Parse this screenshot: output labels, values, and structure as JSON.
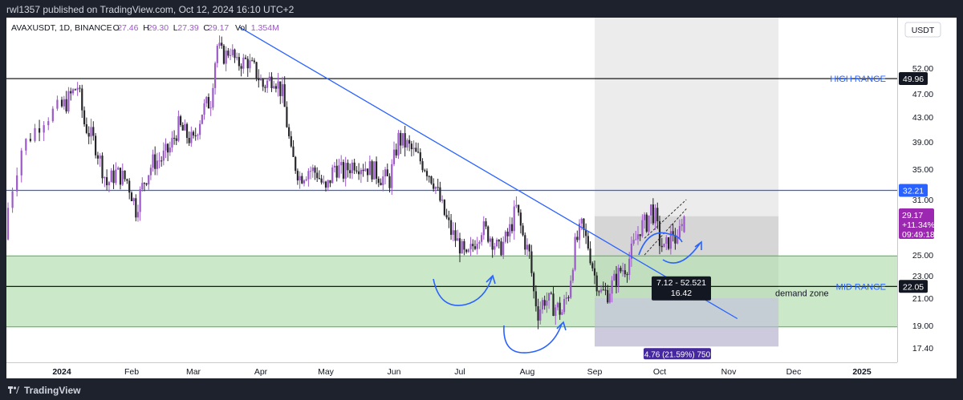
{
  "header": {
    "published_text": "rwl1357 published on TradingView.com, Oct 12, 2024 16:10 UTC+2"
  },
  "legend": {
    "symbol": "AVAXUSDT, 1D, BINANCE",
    "o_label": "O",
    "o_value": "27.46",
    "h_label": "H",
    "h_value": "29.30",
    "l_label": "L",
    "l_value": "27.39",
    "c_label": "C",
    "c_value": "29.17",
    "vol_label": "Vol",
    "vol_value": "1.354M"
  },
  "colors": {
    "bull": "#9c59c8",
    "bear": "#26262b",
    "trendline": "#2962ff",
    "demand_fill": "#b9e0b5",
    "current_price_badge": "#9c27b0",
    "level_badge": "#131722",
    "blue_badge": "#2962ff",
    "range_badge": "#4527a0"
  },
  "footer": {
    "brand": "TradingView"
  },
  "chart_data": {
    "type": "candlestick",
    "currency": "USDT",
    "y_ticks": [
      52.0,
      47.0,
      43.0,
      39.0,
      35.0,
      31.0,
      25.0,
      23.0,
      21.0,
      19.0,
      17.4
    ],
    "y_tick_labels": [
      "52.00",
      "47.00",
      "43.00",
      "39.00",
      "35.00",
      "31.00",
      "25.00",
      "23.00",
      "21.00",
      "19.00",
      "17.40"
    ],
    "x_tick_labels": [
      "2024",
      "Feb",
      "Mar",
      "Apr",
      "May",
      "Jun",
      "Jul",
      "Aug",
      "Sep",
      "Oct",
      "Nov",
      "Dec",
      "2025"
    ],
    "x_tick_dates": [
      "2024-01-01",
      "2024-02-01",
      "2024-03-01",
      "2024-04-01",
      "2024-05-01",
      "2024-06-01",
      "2024-07-01",
      "2024-08-01",
      "2024-09-01",
      "2024-10-01",
      "2024-11-01",
      "2024-12-01",
      "2025-01-01"
    ],
    "y_range": [
      16.5,
      80.0
    ],
    "x_range": [
      "2023-12-20",
      "2025-01-20"
    ],
    "closes": [
      {
        "d": "2023-12-20",
        "c": 27.5
      },
      {
        "d": "2023-12-24",
        "c": 38.0
      },
      {
        "d": "2023-12-29",
        "c": 43.0
      },
      {
        "d": "2024-01-04",
        "c": 45.5
      },
      {
        "d": "2024-01-09",
        "c": 48.5
      },
      {
        "d": "2024-01-12",
        "c": 42.0
      },
      {
        "d": "2024-01-17",
        "c": 38.5
      },
      {
        "d": "2024-01-22",
        "c": 33.0
      },
      {
        "d": "2024-01-26",
        "c": 34.5
      },
      {
        "d": "2024-01-31",
        "c": 33.5
      },
      {
        "d": "2024-02-04",
        "c": 30.0
      },
      {
        "d": "2024-02-08",
        "c": 33.5
      },
      {
        "d": "2024-02-12",
        "c": 36.0
      },
      {
        "d": "2024-02-16",
        "c": 36.5
      },
      {
        "d": "2024-02-20",
        "c": 38.0
      },
      {
        "d": "2024-02-24",
        "c": 41.5
      },
      {
        "d": "2024-02-28",
        "c": 40.0
      },
      {
        "d": "2024-03-02",
        "c": 39.0
      },
      {
        "d": "2024-03-06",
        "c": 44.0
      },
      {
        "d": "2024-03-10",
        "c": 46.0
      },
      {
        "d": "2024-03-13",
        "c": 58.0
      },
      {
        "d": "2024-03-16",
        "c": 55.0
      },
      {
        "d": "2024-03-19",
        "c": 57.0
      },
      {
        "d": "2024-03-22",
        "c": 53.0
      },
      {
        "d": "2024-03-26",
        "c": 54.0
      },
      {
        "d": "2024-03-30",
        "c": 52.0
      },
      {
        "d": "2024-04-03",
        "c": 48.5
      },
      {
        "d": "2024-04-08",
        "c": 50.5
      },
      {
        "d": "2024-04-12",
        "c": 47.0
      },
      {
        "d": "2024-04-16",
        "c": 37.0
      },
      {
        "d": "2024-04-20",
        "c": 34.0
      },
      {
        "d": "2024-04-24",
        "c": 35.0
      },
      {
        "d": "2024-04-28",
        "c": 34.5
      },
      {
        "d": "2024-05-02",
        "c": 32.0
      },
      {
        "d": "2024-05-06",
        "c": 35.5
      },
      {
        "d": "2024-05-10",
        "c": 34.5
      },
      {
        "d": "2024-05-15",
        "c": 36.0
      },
      {
        "d": "2024-05-19",
        "c": 35.5
      },
      {
        "d": "2024-05-23",
        "c": 35.0
      },
      {
        "d": "2024-05-27",
        "c": 34.0
      },
      {
        "d": "2024-05-31",
        "c": 33.5
      },
      {
        "d": "2024-06-04",
        "c": 39.5
      },
      {
        "d": "2024-06-08",
        "c": 38.5
      },
      {
        "d": "2024-06-12",
        "c": 37.0
      },
      {
        "d": "2024-06-16",
        "c": 35.5
      },
      {
        "d": "2024-06-20",
        "c": 33.5
      },
      {
        "d": "2024-06-24",
        "c": 30.0
      },
      {
        "d": "2024-06-28",
        "c": 27.5
      },
      {
        "d": "2024-07-02",
        "c": 26.0
      },
      {
        "d": "2024-07-05",
        "c": 24.5
      },
      {
        "d": "2024-07-08",
        "c": 26.0
      },
      {
        "d": "2024-07-12",
        "c": 28.0
      },
      {
        "d": "2024-07-16",
        "c": 27.0
      },
      {
        "d": "2024-07-20",
        "c": 25.5
      },
      {
        "d": "2024-07-24",
        "c": 27.0
      },
      {
        "d": "2024-07-28",
        "c": 30.0
      },
      {
        "d": "2024-07-31",
        "c": 27.0
      },
      {
        "d": "2024-08-03",
        "c": 25.0
      },
      {
        "d": "2024-08-05",
        "c": 21.5
      },
      {
        "d": "2024-08-07",
        "c": 20.0
      },
      {
        "d": "2024-08-10",
        "c": 21.0
      },
      {
        "d": "2024-08-14",
        "c": 20.5
      },
      {
        "d": "2024-08-18",
        "c": 20.0
      },
      {
        "d": "2024-08-21",
        "c": 21.5
      },
      {
        "d": "2024-08-24",
        "c": 26.0
      },
      {
        "d": "2024-08-27",
        "c": 28.0
      },
      {
        "d": "2024-08-30",
        "c": 26.0
      },
      {
        "d": "2024-09-02",
        "c": 23.0
      },
      {
        "d": "2024-09-05",
        "c": 21.5
      },
      {
        "d": "2024-09-08",
        "c": 21.5
      },
      {
        "d": "2024-09-11",
        "c": 22.5
      },
      {
        "d": "2024-09-14",
        "c": 23.5
      },
      {
        "d": "2024-09-17",
        "c": 24.0
      },
      {
        "d": "2024-09-20",
        "c": 26.0
      },
      {
        "d": "2024-09-23",
        "c": 28.0
      },
      {
        "d": "2024-09-26",
        "c": 28.5
      },
      {
        "d": "2024-09-28",
        "c": 30.0
      },
      {
        "d": "2024-09-30",
        "c": 29.0
      },
      {
        "d": "2024-10-02",
        "c": 26.5
      },
      {
        "d": "2024-10-04",
        "c": 25.5
      },
      {
        "d": "2024-10-06",
        "c": 26.5
      },
      {
        "d": "2024-10-08",
        "c": 27.5
      },
      {
        "d": "2024-10-10",
        "c": 26.0
      },
      {
        "d": "2024-10-12",
        "c": 29.17
      }
    ],
    "levels": [
      {
        "label": "HIGH RANGE",
        "value": 49.96,
        "badge": "49.96",
        "color": "#000000"
      },
      {
        "label": "",
        "value": 32.21,
        "badge": "32.21",
        "color": "#2962ff"
      },
      {
        "label": "MID RANGE",
        "value": 22.05,
        "badge": "22.05",
        "color": "#000000"
      }
    ],
    "demand_zone": {
      "label": "demand zone",
      "top": 24.9,
      "bottom": 18.9
    },
    "trendline": {
      "from": {
        "d": "2024-03-22",
        "v": 63.0
      },
      "to": {
        "d": "2024-11-05",
        "v": 19.5
      }
    },
    "position_tool": {
      "entry": 29.2,
      "target": "2024-11-24",
      "start": "2024-09-01",
      "stop": 17.5,
      "top": 63.0,
      "label": "4.76 (21.59%) 750"
    },
    "measure_label": {
      "line1": "7.12 - 52.521",
      "line2": "16.42"
    },
    "current_price": {
      "price": "29.17",
      "change": "+11.34%",
      "countdown": "09:49:18"
    }
  }
}
